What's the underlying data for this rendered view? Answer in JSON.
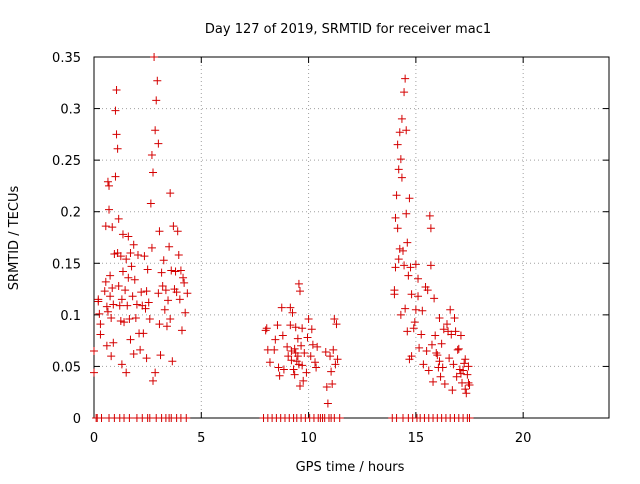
{
  "chart_data": {
    "type": "scatter",
    "title": "Day 127 of 2019, SRMTID for receiver mac1",
    "xlabel": "GPS time / hours",
    "ylabel": "SRMTID / TECUs",
    "xlim": [
      0,
      24
    ],
    "ylim": [
      0,
      0.35
    ],
    "xticks": [
      0,
      5,
      10,
      15,
      20
    ],
    "xtick_labels": [
      "0",
      "5",
      "10",
      "15",
      "20"
    ],
    "yticks": [
      0,
      0.05,
      0.1,
      0.15,
      0.2,
      0.25,
      0.3,
      0.35
    ],
    "ytick_labels": [
      "0",
      "0.05",
      "0.1",
      "0.15",
      "0.2",
      "0.25",
      "0.3",
      "0.35"
    ],
    "grid": true,
    "marker": "+",
    "color": "#d40000",
    "series": [
      {
        "name": "SRMTID",
        "points": [
          [
            0.0,
            0.065
          ],
          [
            0.0,
            0.044
          ],
          [
            0.1,
            0.0
          ],
          [
            0.2,
            0.115
          ],
          [
            0.2,
            0.113
          ],
          [
            0.25,
            0.101
          ],
          [
            0.3,
            0.081
          ],
          [
            0.3,
            0.091
          ],
          [
            0.15,
            0.0
          ],
          [
            0.35,
            0.0
          ],
          [
            0.5,
            0.123
          ],
          [
            0.55,
            0.186
          ],
          [
            0.55,
            0.132
          ],
          [
            0.6,
            0.07
          ],
          [
            0.6,
            0.108
          ],
          [
            0.65,
            0.103
          ],
          [
            0.65,
            0.229
          ],
          [
            0.7,
            0.225
          ],
          [
            0.7,
            0.202
          ],
          [
            0.7,
            0.0
          ],
          [
            0.75,
            0.138
          ],
          [
            0.75,
            0.118
          ],
          [
            0.8,
            0.097
          ],
          [
            0.8,
            0.06
          ],
          [
            0.85,
            0.185
          ],
          [
            0.85,
            0.126
          ],
          [
            0.9,
            0.11
          ],
          [
            0.9,
            0.073
          ],
          [
            0.95,
            0.159
          ],
          [
            0.95,
            0.0
          ],
          [
            1.0,
            0.234
          ],
          [
            1.0,
            0.298
          ],
          [
            1.05,
            0.318
          ],
          [
            1.05,
            0.275
          ],
          [
            1.1,
            0.261
          ],
          [
            1.1,
            0.16
          ],
          [
            1.15,
            0.193
          ],
          [
            1.15,
            0.128
          ],
          [
            1.2,
            0.109
          ],
          [
            1.2,
            0.0
          ],
          [
            1.25,
            0.157
          ],
          [
            1.25,
            0.094
          ],
          [
            1.3,
            0.115
          ],
          [
            1.3,
            0.052
          ],
          [
            1.35,
            0.178
          ],
          [
            1.35,
            0.142
          ],
          [
            1.4,
            0.093
          ],
          [
            1.4,
            0.0
          ],
          [
            1.45,
            0.124
          ],
          [
            1.5,
            0.154
          ],
          [
            1.5,
            0.044
          ],
          [
            1.55,
            0.109
          ],
          [
            1.6,
            0.176
          ],
          [
            1.6,
            0.136
          ],
          [
            1.65,
            0.096
          ],
          [
            1.65,
            0.0
          ],
          [
            1.7,
            0.16
          ],
          [
            1.7,
            0.076
          ],
          [
            1.75,
            0.147
          ],
          [
            1.8,
            0.118
          ],
          [
            1.85,
            0.168
          ],
          [
            1.85,
            0.062
          ],
          [
            1.9,
            0.134
          ],
          [
            1.95,
            0.097
          ],
          [
            2.0,
            0.0
          ],
          [
            2.0,
            0.11
          ],
          [
            2.05,
            0.158
          ],
          [
            2.1,
            0.082
          ],
          [
            2.15,
            0.066
          ],
          [
            2.2,
            0.122
          ],
          [
            2.25,
            0.109
          ],
          [
            2.25,
            0.0
          ],
          [
            2.3,
            0.082
          ],
          [
            2.35,
            0.157
          ],
          [
            2.4,
            0.106
          ],
          [
            2.45,
            0.123
          ],
          [
            2.45,
            0.058
          ],
          [
            2.5,
            0.144
          ],
          [
            2.5,
            0.0
          ],
          [
            2.55,
            0.112
          ],
          [
            2.6,
            0.096
          ],
          [
            2.65,
            0.208
          ],
          [
            2.7,
            0.165
          ],
          [
            2.7,
            0.255
          ],
          [
            2.75,
            0.238
          ],
          [
            2.75,
            0.036
          ],
          [
            2.8,
            0.35
          ],
          [
            2.85,
            0.279
          ],
          [
            2.85,
            0.044
          ],
          [
            2.9,
            0.308
          ],
          [
            2.9,
            0.0
          ],
          [
            2.95,
            0.327
          ],
          [
            3.0,
            0.266
          ],
          [
            3.0,
            0.121
          ],
          [
            3.05,
            0.181
          ],
          [
            3.05,
            0.091
          ],
          [
            3.1,
            0.061
          ],
          [
            3.15,
            0.141
          ],
          [
            3.15,
            0.0
          ],
          [
            3.2,
            0.128
          ],
          [
            3.25,
            0.153
          ],
          [
            3.3,
            0.105
          ],
          [
            3.35,
            0.124
          ],
          [
            3.35,
            0.0
          ],
          [
            3.4,
            0.089
          ],
          [
            3.45,
            0.114
          ],
          [
            3.5,
            0.166
          ],
          [
            3.55,
            0.218
          ],
          [
            3.55,
            0.096
          ],
          [
            3.6,
            0.143
          ],
          [
            3.6,
            0.0
          ],
          [
            3.65,
            0.055
          ],
          [
            3.7,
            0.186
          ],
          [
            3.75,
            0.125
          ],
          [
            3.8,
            0.142
          ],
          [
            3.85,
            0.122
          ],
          [
            3.85,
            0.0
          ],
          [
            3.9,
            0.181
          ],
          [
            3.95,
            0.158
          ],
          [
            4.0,
            0.115
          ],
          [
            4.05,
            0.143
          ],
          [
            4.05,
            0.0
          ],
          [
            4.1,
            0.085
          ],
          [
            4.15,
            0.136
          ],
          [
            4.2,
            0.131
          ],
          [
            4.25,
            0.102
          ],
          [
            4.3,
            0.0
          ],
          [
            4.35,
            0.121
          ],
          [
            3.5,
            0.0
          ],
          [
            2.6,
            0.0
          ],
          [
            7.9,
            0.0
          ],
          [
            8.0,
            0.085
          ],
          [
            8.05,
            0.087
          ],
          [
            8.1,
            0.066
          ],
          [
            8.1,
            0.0
          ],
          [
            8.2,
            0.054
          ],
          [
            8.3,
            0.0
          ],
          [
            8.4,
            0.066
          ],
          [
            8.45,
            0.076
          ],
          [
            8.5,
            0.0
          ],
          [
            8.55,
            0.09
          ],
          [
            8.6,
            0.049
          ],
          [
            8.65,
            0.041
          ],
          [
            8.7,
            0.0
          ],
          [
            8.75,
            0.107
          ],
          [
            8.8,
            0.08
          ],
          [
            8.85,
            0.047
          ],
          [
            8.9,
            0.0
          ],
          [
            9.0,
            0.069
          ],
          [
            9.05,
            0.06
          ],
          [
            9.1,
            0.0
          ],
          [
            9.15,
            0.107
          ],
          [
            9.15,
            0.09
          ],
          [
            9.2,
            0.065
          ],
          [
            9.2,
            0.056
          ],
          [
            9.25,
            0.102
          ],
          [
            9.3,
            0.0
          ],
          [
            9.3,
            0.047
          ],
          [
            9.35,
            0.067
          ],
          [
            9.35,
            0.042
          ],
          [
            9.4,
            0.088
          ],
          [
            9.4,
            0.063
          ],
          [
            9.45,
            0.0
          ],
          [
            9.45,
            0.055
          ],
          [
            9.5,
            0.077
          ],
          [
            9.5,
            0.06
          ],
          [
            9.55,
            0.13
          ],
          [
            9.55,
            0.052
          ],
          [
            9.6,
            0.123
          ],
          [
            9.6,
            0.031
          ],
          [
            9.65,
            0.0
          ],
          [
            9.65,
            0.07
          ],
          [
            9.7,
            0.051
          ],
          [
            9.7,
            0.087
          ],
          [
            9.75,
            0.036
          ],
          [
            9.8,
            0.063
          ],
          [
            9.85,
            0.0
          ],
          [
            9.9,
            0.044
          ],
          [
            9.95,
            0.078
          ],
          [
            10.0,
            0.096
          ],
          [
            10.05,
            0.0
          ],
          [
            10.1,
            0.06
          ],
          [
            10.15,
            0.086
          ],
          [
            10.2,
            0.071
          ],
          [
            10.25,
            0.0
          ],
          [
            10.3,
            0.054
          ],
          [
            10.35,
            0.049
          ],
          [
            10.4,
            0.069
          ],
          [
            10.45,
            0.0
          ],
          [
            10.55,
            0.0
          ],
          [
            10.65,
            0.0
          ],
          [
            10.75,
            0.0
          ],
          [
            10.8,
            0.064
          ],
          [
            10.85,
            0.03
          ],
          [
            10.9,
            0.014
          ],
          [
            10.95,
            0.0
          ],
          [
            11.0,
            0.06
          ],
          [
            11.05,
            0.045
          ],
          [
            11.05,
            0.0
          ],
          [
            11.1,
            0.033
          ],
          [
            11.15,
            0.066
          ],
          [
            11.2,
            0.096
          ],
          [
            11.2,
            0.0
          ],
          [
            11.25,
            0.052
          ],
          [
            11.3,
            0.091
          ],
          [
            11.35,
            0.057
          ],
          [
            11.45,
            0.0
          ],
          [
            13.9,
            0.0
          ],
          [
            14.0,
            0.124
          ],
          [
            14.0,
            0.12
          ],
          [
            14.05,
            0.146
          ],
          [
            14.05,
            0.194
          ],
          [
            14.1,
            0.216
          ],
          [
            14.1,
            0.0
          ],
          [
            14.15,
            0.265
          ],
          [
            14.15,
            0.184
          ],
          [
            14.2,
            0.241
          ],
          [
            14.2,
            0.154
          ],
          [
            14.25,
            0.277
          ],
          [
            14.25,
            0.164
          ],
          [
            14.3,
            0.251
          ],
          [
            14.3,
            0.1
          ],
          [
            14.35,
            0.29
          ],
          [
            14.35,
            0.233
          ],
          [
            14.4,
            0.162
          ],
          [
            14.4,
            0.0
          ],
          [
            14.45,
            0.316
          ],
          [
            14.45,
            0.148
          ],
          [
            14.5,
            0.329
          ],
          [
            14.5,
            0.106
          ],
          [
            14.55,
            0.279
          ],
          [
            14.55,
            0.198
          ],
          [
            14.6,
            0.17
          ],
          [
            14.6,
            0.084
          ],
          [
            14.65,
            0.138
          ],
          [
            14.65,
            0.0
          ],
          [
            14.7,
            0.057
          ],
          [
            14.7,
            0.213
          ],
          [
            14.75,
            0.146
          ],
          [
            14.8,
            0.12
          ],
          [
            14.8,
            0.06
          ],
          [
            14.85,
            0.0
          ],
          [
            14.9,
            0.087
          ],
          [
            14.95,
            0.093
          ],
          [
            15.0,
            0.105
          ],
          [
            15.0,
            0.149
          ],
          [
            15.05,
            0.0
          ],
          [
            15.1,
            0.135
          ],
          [
            15.1,
            0.118
          ],
          [
            15.15,
            0.068
          ],
          [
            15.2,
            0.0
          ],
          [
            15.25,
            0.081
          ],
          [
            15.3,
            0.104
          ],
          [
            15.35,
            0.052
          ],
          [
            15.4,
            0.0
          ],
          [
            15.45,
            0.127
          ],
          [
            15.5,
            0.065
          ],
          [
            15.55,
            0.124
          ],
          [
            15.6,
            0.046
          ],
          [
            15.6,
            0.0
          ],
          [
            15.65,
            0.196
          ],
          [
            15.7,
            0.184
          ],
          [
            15.7,
            0.148
          ],
          [
            15.75,
            0.071
          ],
          [
            15.8,
            0.035
          ],
          [
            15.8,
            0.0
          ],
          [
            15.85,
            0.116
          ],
          [
            15.9,
            0.08
          ],
          [
            15.95,
            0.063
          ],
          [
            16.0,
            0.0
          ],
          [
            16.0,
            0.061
          ],
          [
            16.05,
            0.049
          ],
          [
            16.1,
            0.097
          ],
          [
            16.1,
            0.055
          ],
          [
            16.15,
            0.04
          ],
          [
            16.2,
            0.0
          ],
          [
            16.2,
            0.072
          ],
          [
            16.25,
            0.049
          ],
          [
            16.3,
            0.086
          ],
          [
            16.35,
            0.033
          ],
          [
            16.4,
            0.0
          ],
          [
            16.45,
            0.091
          ],
          [
            16.5,
            0.084
          ],
          [
            16.55,
            0.058
          ],
          [
            16.6,
            0.0
          ],
          [
            16.6,
            0.105
          ],
          [
            16.65,
            0.081
          ],
          [
            16.7,
            0.027
          ],
          [
            16.75,
            0.052
          ],
          [
            16.8,
            0.0
          ],
          [
            16.8,
            0.097
          ],
          [
            16.85,
            0.084
          ],
          [
            16.9,
            0.04
          ],
          [
            16.95,
            0.066
          ],
          [
            17.0,
            0.0
          ],
          [
            17.0,
            0.067
          ],
          [
            17.05,
            0.047
          ],
          [
            17.1,
            0.043
          ],
          [
            17.1,
            0.08
          ],
          [
            17.15,
            0.034
          ],
          [
            17.2,
            0.0
          ],
          [
            17.2,
            0.046
          ],
          [
            17.25,
            0.053
          ],
          [
            17.3,
            0.028
          ],
          [
            17.3,
            0.057
          ],
          [
            17.35,
            0.024
          ],
          [
            17.4,
            0.0
          ],
          [
            17.4,
            0.042
          ],
          [
            17.45,
            0.034
          ],
          [
            17.45,
            0.05
          ],
          [
            17.5,
            0.0
          ],
          [
            17.5,
            0.032
          ]
        ]
      }
    ]
  }
}
